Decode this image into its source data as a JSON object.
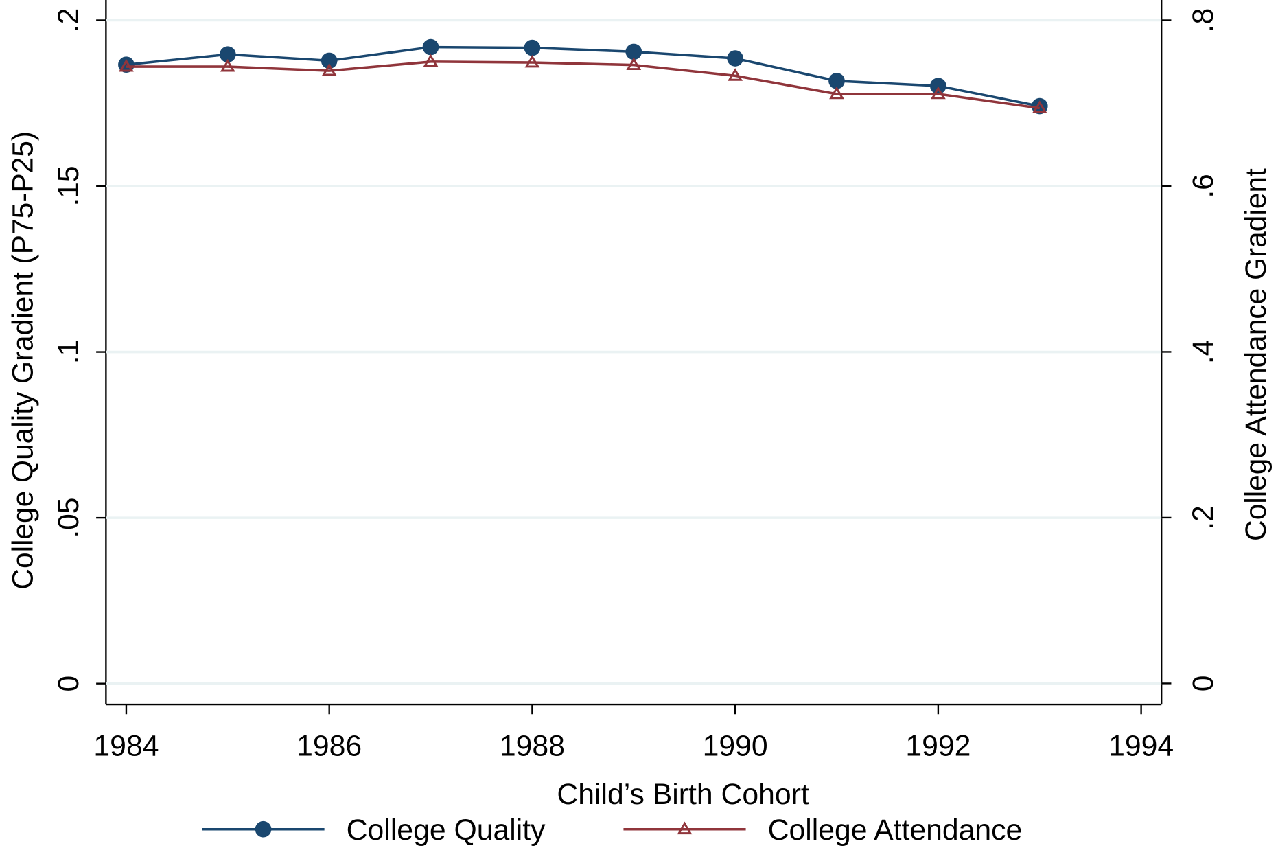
{
  "chart_data": {
    "type": "line",
    "x": [
      1984,
      1985,
      1986,
      1987,
      1988,
      1989,
      1990,
      1991,
      1992,
      1993
    ],
    "series": [
      {
        "name": "College Quality",
        "color": "#1a476f",
        "marker": "circle",
        "values": [
          0.1866,
          0.1897,
          0.1878,
          0.1919,
          0.1917,
          0.1905,
          0.1885,
          0.1817,
          0.1802,
          0.1741
        ]
      },
      {
        "name": "College Attendance",
        "color": "#90353b",
        "marker": "triangle",
        "axis": "y2",
        "values": [
          0.744,
          0.744,
          0.739,
          0.75,
          0.749,
          0.746,
          0.733,
          0.711,
          0.711,
          0.694
        ]
      }
    ],
    "xlabel": "Child’s Birth Cohort",
    "ylabel": "College Quality Gradient (P75-P25)",
    "y2label": "College Attendance Gradient",
    "xlim": [
      1983.8,
      1994.2
    ],
    "xticks": [
      1984,
      1986,
      1988,
      1990,
      1992,
      1994
    ],
    "ylim": [
      -0.0063,
      0.2061
    ],
    "yticks": [
      0,
      {
        "value": 0.05,
        "label": ".05"
      },
      {
        "value": 0.1,
        "label": ".1"
      },
      {
        "value": 0.15,
        "label": ".15"
      },
      {
        "value": 0.2,
        "label": ".2"
      }
    ],
    "y2lim": [
      -0.0254,
      0.8244
    ],
    "y2ticks": [
      0,
      {
        "value": 0.2,
        "label": ".2"
      },
      {
        "value": 0.4,
        "label": ".4"
      },
      {
        "value": 0.6,
        "label": ".6"
      },
      {
        "value": 0.8,
        "label": ".8"
      }
    ],
    "grid": true,
    "legend": "bottom"
  }
}
